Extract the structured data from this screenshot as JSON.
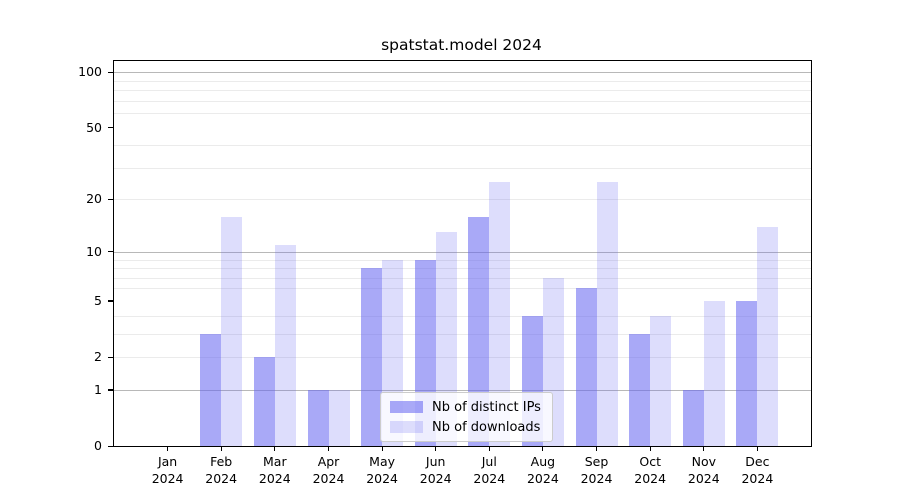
{
  "chart_data": {
    "type": "bar",
    "title": "spatstat.model 2024",
    "categories": [
      "Jan",
      "Feb",
      "Mar",
      "Apr",
      "May",
      "Jun",
      "Jul",
      "Aug",
      "Sep",
      "Oct",
      "Nov",
      "Dec"
    ],
    "x_year_label": "2024",
    "series": [
      {
        "name": "Nb of distinct IPs",
        "color": "rgba(99,99,241,0.55)",
        "values": [
          0,
          3,
          2,
          1,
          8,
          9,
          16,
          4,
          6,
          3,
          1,
          5
        ]
      },
      {
        "name": "Nb of downloads",
        "color": "rgba(99,99,241,0.22)",
        "values": [
          0,
          16,
          11,
          1,
          9,
          13,
          25,
          7,
          25,
          4,
          5,
          14
        ]
      }
    ],
    "y_axis": {
      "scale": "log1p",
      "tick_values": [
        0,
        1,
        2,
        5,
        10,
        20,
        50,
        100
      ],
      "major_grid_values": [
        1,
        10,
        100
      ],
      "minor_grid_values": [
        2,
        3,
        4,
        6,
        7,
        8,
        9,
        20,
        30,
        40,
        60,
        70,
        80,
        90
      ],
      "top_value": 115,
      "ylim": [
        0,
        115
      ]
    },
    "legend": {
      "position": "lower center",
      "entries": [
        "Nb of distinct IPs",
        "Nb of downloads"
      ]
    },
    "colors": {
      "axis": "#000000",
      "major_grid": "#b8b8b8",
      "minor_grid": "#ebebeb",
      "background": "#ffffff",
      "text": "#000000"
    },
    "grid": true
  }
}
